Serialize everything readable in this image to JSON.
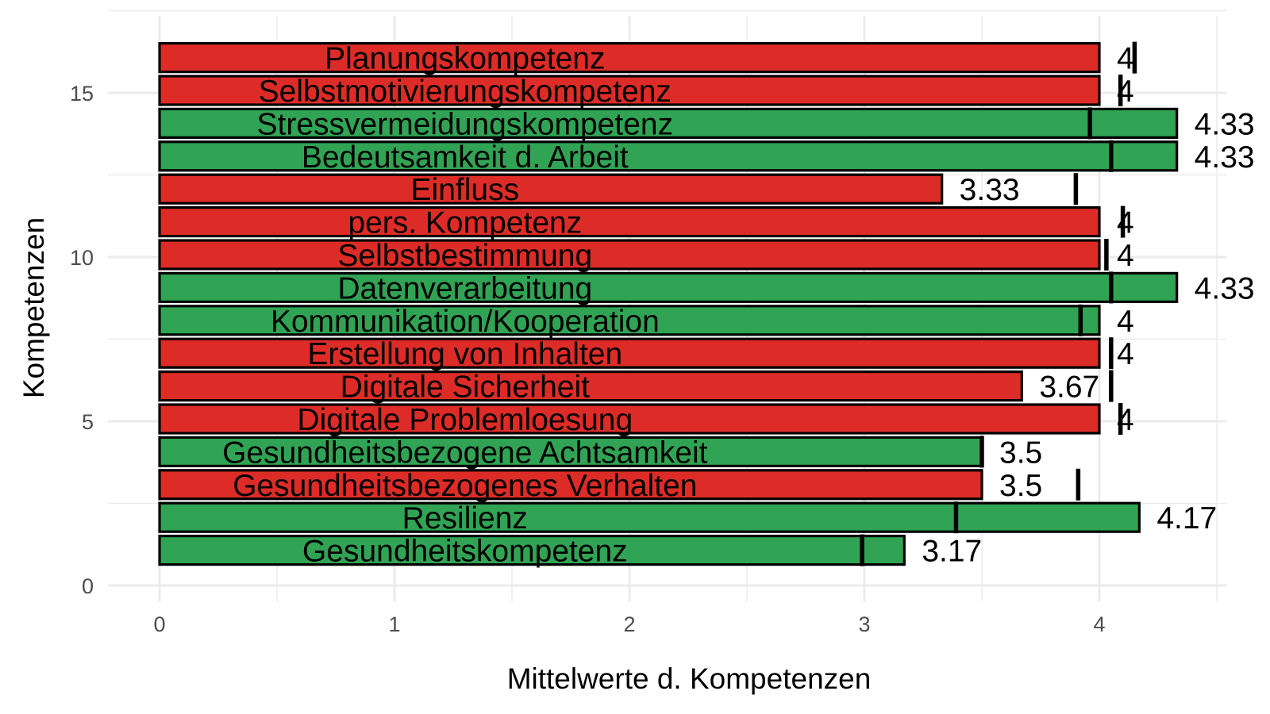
{
  "chart_data": {
    "type": "bar",
    "orientation": "horizontal",
    "xlabel": "Mittelwerte d. Kompetenzen",
    "ylabel": "Kompetenzen",
    "xlim": [
      -0.22,
      4.55
    ],
    "ylim": [
      -0.1,
      17.3
    ],
    "x_ticks": [
      0,
      1,
      2,
      3,
      4
    ],
    "y_ticks": [
      0,
      5,
      10,
      15
    ],
    "grid": true,
    "colors": {
      "red": "#dd2c27",
      "green": "#31a354"
    },
    "bars": [
      {
        "position": 1,
        "label": "Gesundheitskompetenz",
        "value": 3.17,
        "value_label": "3.17",
        "reference": 2.99,
        "color": "green"
      },
      {
        "position": 2,
        "label": "Resilienz",
        "value": 4.17,
        "value_label": "4.17",
        "reference": 3.39,
        "color": "green"
      },
      {
        "position": 3,
        "label": "Gesundheitsbezogenes Verhalten",
        "value": 3.5,
        "value_label": "3.5",
        "reference": 3.91,
        "color": "red"
      },
      {
        "position": 4,
        "label": "Gesundheitsbezogene Achtsamkeit",
        "value": 3.5,
        "value_label": "3.5",
        "reference": 3.5,
        "color": "green"
      },
      {
        "position": 5,
        "label": "Digitale Problemloesung",
        "value": 4,
        "value_label": "4",
        "reference": 4.09,
        "color": "red"
      },
      {
        "position": 6,
        "label": "Digitale Sicherheit",
        "value": 3.67,
        "value_label": "3.67",
        "reference": 4.05,
        "color": "red"
      },
      {
        "position": 7,
        "label": "Erstellung von Inhalten",
        "value": 4,
        "value_label": "4",
        "reference": 4.05,
        "color": "red"
      },
      {
        "position": 8,
        "label": "Kommunikation/Kooperation",
        "value": 4,
        "value_label": "4",
        "reference": 3.92,
        "color": "green"
      },
      {
        "position": 9,
        "label": "Datenverarbeitung",
        "value": 4.33,
        "value_label": "4.33",
        "reference": 4.05,
        "color": "green"
      },
      {
        "position": 10,
        "label": "Selbstbestimmung",
        "value": 4,
        "value_label": "4",
        "reference": 4.03,
        "color": "red"
      },
      {
        "position": 11,
        "label": "pers. Kompetenz",
        "value": 4,
        "value_label": "4",
        "reference": 4.1,
        "color": "red"
      },
      {
        "position": 12,
        "label": "Einfluss",
        "value": 3.33,
        "value_label": "3.33",
        "reference": 3.9,
        "color": "red"
      },
      {
        "position": 13,
        "label": "Bedeutsamkeit d. Arbeit",
        "value": 4.33,
        "value_label": "4.33",
        "reference": 4.05,
        "color": "green"
      },
      {
        "position": 14,
        "label": "Stressvermeidungskompetenz",
        "value": 4.33,
        "value_label": "4.33",
        "reference": 3.96,
        "color": "green"
      },
      {
        "position": 15,
        "label": "Selbstmotivierungskompetenz",
        "value": 4,
        "value_label": "4",
        "reference": 4.09,
        "color": "red"
      },
      {
        "position": 16,
        "label": "Planungskompetenz",
        "value": 4,
        "value_label": "4",
        "reference": 4.15,
        "color": "red"
      }
    ]
  }
}
